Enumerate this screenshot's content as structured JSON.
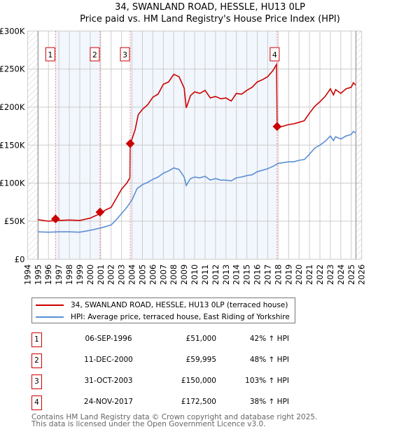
{
  "chart_data": {
    "type": "line",
    "title": "34, SWANLAND ROAD, HESSLE, HU13 0LP",
    "subtitle": "Price paid vs. HM Land Registry's House Price Index (HPI)",
    "xlim": [
      1994,
      2026
    ],
    "ylim": [
      0,
      300000
    ],
    "x_ticks": [
      "1994",
      "1995",
      "1996",
      "1997",
      "1998",
      "1999",
      "2000",
      "2001",
      "2002",
      "2003",
      "2004",
      "2005",
      "2006",
      "2007",
      "2008",
      "2009",
      "2010",
      "2011",
      "2012",
      "2013",
      "2014",
      "2015",
      "2016",
      "2017",
      "2018",
      "2019",
      "2020",
      "2021",
      "2022",
      "2023",
      "2024",
      "2025",
      "2026"
    ],
    "y_ticks": [
      {
        "v": 0,
        "label": "£0"
      },
      {
        "v": 50000,
        "label": "£50K"
      },
      {
        "v": 100000,
        "label": "£100K"
      },
      {
        "v": 150000,
        "label": "£150K"
      },
      {
        "v": 200000,
        "label": "£200K"
      },
      {
        "v": 250000,
        "label": "£250K"
      },
      {
        "v": 300000,
        "label": "£300K"
      }
    ],
    "grid": true,
    "series": [
      {
        "name": "34, SWANLAND ROAD, HESSLE, HU13 0LP (terraced house)",
        "color": "#cc0000",
        "x": [
          1995,
          1996,
          1996.7,
          1997,
          1998,
          1999,
          2000,
          2000.95,
          2001.5,
          2002,
          2002.5,
          2003,
          2003.5,
          2003.8,
          2003.83,
          2004,
          2004.3,
          2004.6,
          2005,
          2005.5,
          2006,
          2006.5,
          2007,
          2007.5,
          2008,
          2008.5,
          2009,
          2009.2,
          2009.6,
          2010,
          2010.5,
          2011,
          2011.5,
          2012,
          2012.5,
          2013,
          2013.5,
          2014,
          2014.5,
          2015,
          2015.5,
          2016,
          2016.5,
          2017,
          2017.5,
          2017.85,
          2017.9,
          2018.5,
          2019,
          2019.5,
          2020,
          2020.5,
          2021,
          2021.5,
          2022,
          2022.5,
          2023,
          2023.3,
          2023.5,
          2024,
          2024.5,
          2025,
          2025.2,
          2025.4
        ],
        "y": [
          52,
          50,
          51,
          51,
          51.5,
          51,
          54,
          60,
          65,
          68,
          80,
          92,
          100,
          107,
          150,
          158,
          170,
          190,
          197,
          203,
          213,
          217,
          230,
          233,
          243,
          240,
          225,
          199,
          215,
          220,
          218,
          222,
          212,
          214,
          211,
          212,
          208,
          218,
          217,
          222,
          226,
          233,
          236,
          240,
          248,
          256,
          172.5,
          175,
          177,
          178,
          180,
          182,
          192,
          201,
          207,
          214,
          224,
          216,
          223,
          218,
          224,
          226,
          232,
          229
        ],
        "unit": "thousand GBP"
      },
      {
        "name": "HPI: Average price, terraced house, East Riding of Yorkshire",
        "color": "#5b8fd4",
        "x": [
          1995,
          1996,
          1997,
          1998,
          1999,
          2000,
          2001,
          2002,
          2002.5,
          2003,
          2003.5,
          2004,
          2004.5,
          2005,
          2005.5,
          2006,
          2006.5,
          2007,
          2007.5,
          2008,
          2008.5,
          2009,
          2009.2,
          2009.6,
          2010,
          2010.5,
          2011,
          2011.5,
          2012,
          2012.5,
          2013,
          2013.5,
          2014,
          2014.5,
          2015,
          2015.5,
          2016,
          2016.5,
          2017,
          2017.5,
          2018,
          2018.5,
          2019,
          2019.5,
          2020,
          2020.5,
          2021,
          2021.5,
          2022,
          2022.5,
          2023,
          2023.3,
          2023.5,
          2024,
          2024.5,
          2025,
          2025.2,
          2025.4
        ],
        "y": [
          36,
          35.5,
          36,
          36,
          35.5,
          38,
          41,
          45,
          52,
          60,
          68,
          78,
          93,
          98,
          101,
          105,
          108,
          113,
          116,
          120,
          118,
          108,
          97,
          106,
          108,
          107,
          109,
          104,
          106,
          104,
          104,
          103,
          107,
          108,
          110,
          111,
          115,
          117,
          119,
          122,
          126,
          127,
          128,
          128,
          130,
          131,
          138,
          146,
          150,
          155,
          162,
          156,
          161,
          158,
          162,
          164,
          168,
          166
        ],
        "unit": "thousand GBP"
      }
    ],
    "sales": [
      {
        "n": "1",
        "x": 1996.68,
        "date": "06-SEP-1996",
        "price": "£51,000",
        "value": 51000,
        "hpi": "42% ↑ HPI"
      },
      {
        "n": "2",
        "x": 2000.94,
        "date": "11-DEC-2000",
        "price": "£59,995",
        "value": 59995,
        "hpi": "48% ↑ HPI"
      },
      {
        "n": "3",
        "x": 2003.83,
        "date": "31-OCT-2003",
        "price": "£150,000",
        "value": 150000,
        "hpi": "103% ↑ HPI"
      },
      {
        "n": "4",
        "x": 2017.9,
        "date": "24-NOV-2017",
        "price": "£172,500",
        "value": 172500,
        "hpi": "38% ↑ HPI"
      }
    ],
    "legend_placement": "below"
  },
  "footer": {
    "line1": "Contains HM Land Registry data © Crown copyright and database right 2025.",
    "line2": "This data is licensed under the Open Government Licence v3.0."
  }
}
